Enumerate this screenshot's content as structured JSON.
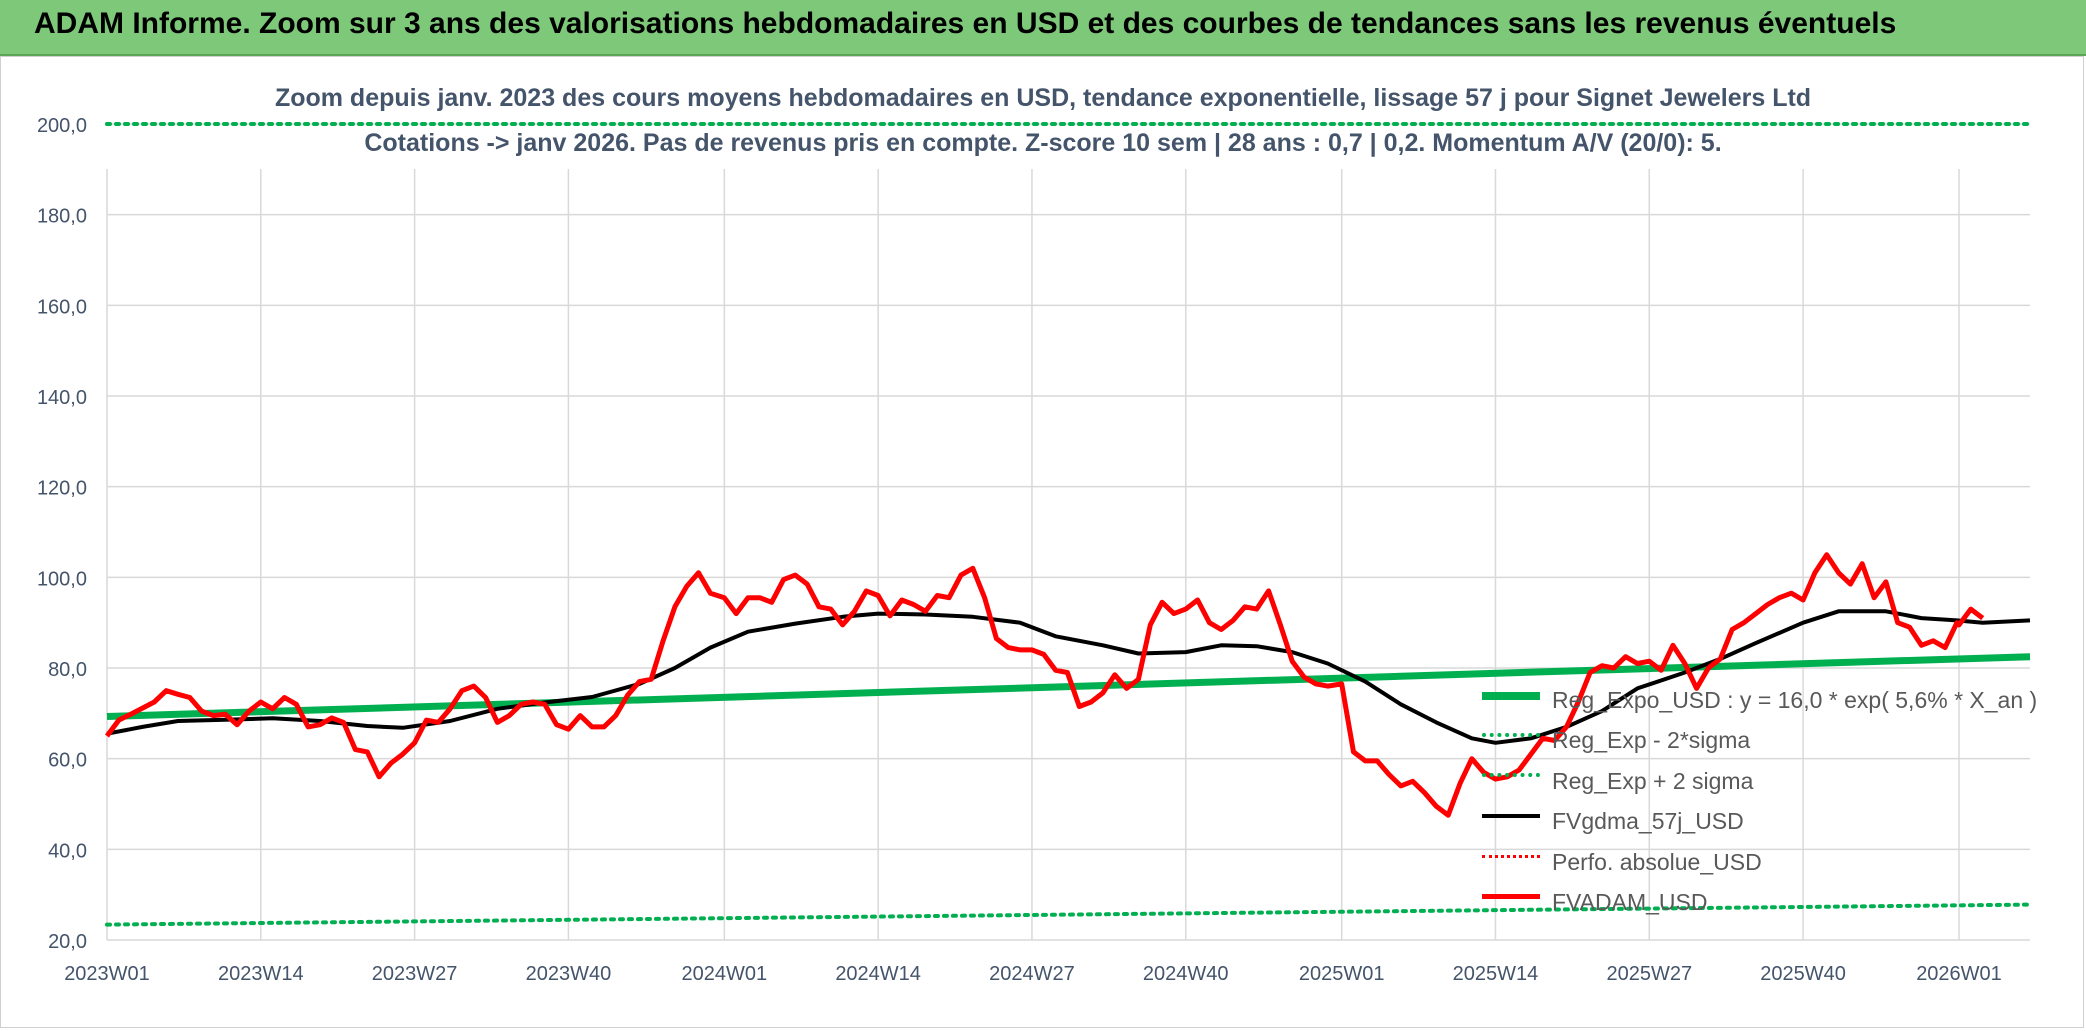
{
  "banner": {
    "title": "ADAM Informe. Zoom sur 3 ans des valorisations hebdomadaires en USD et des courbes de tendances sans les revenus éventuels"
  },
  "colors": {
    "banner": "#7ec87a",
    "reg_expo": "#00b050",
    "fvgdma": "#000000",
    "fvadam": "#ff0000",
    "text": "#44546a",
    "grid": "#d9d9d9"
  },
  "chart_data": {
    "type": "line",
    "title": "Zoom depuis janv. 2023 des cours moyens hebdomadaires en USD, tendance exponentielle, lissage 57 j pour Signet Jewelers Ltd",
    "subtitle": "Cotations -> janv 2026. Pas de revenus pris en compte. Z-score 10 sem | 28 ans : 0,7  | 0,2. Momentum A/V (20/0): 5.",
    "ylim": [
      20,
      200
    ],
    "yticks": [
      "20,0",
      "40,0",
      "60,0",
      "80,0",
      "100,0",
      "120,0",
      "140,0",
      "160,0",
      "180,0",
      "200,0"
    ],
    "x_start_week": "2023W01",
    "x_end_week": "2026W07",
    "x_ticks": [
      "2023W01",
      "2023W14",
      "2023W27",
      "2023W40",
      "2024W01",
      "2024W14",
      "2024W27",
      "2024W40",
      "2025W01",
      "2025W14",
      "2025W27",
      "2025W40",
      "2026W01"
    ],
    "grid": true,
    "legend_position": "right",
    "series": [
      {
        "name": "Reg_Expo_USD : y = 16,0 * exp( 5,6% *  X_an )",
        "style": "solid-thick",
        "color": "#00b050",
        "points": [
          [
            "2023W01",
            69.3
          ],
          [
            "2026W07",
            82.5
          ]
        ]
      },
      {
        "name": "Reg_Exp - 2*sigma",
        "style": "dotted",
        "color": "#00b050",
        "points": [
          [
            "2023W01",
            23.4
          ],
          [
            "2026W07",
            27.8
          ]
        ]
      },
      {
        "name": "Reg_Exp + 2 sigma",
        "style": "dotted",
        "color": "#00b050",
        "points": [
          [
            "2023W01",
            200.0
          ],
          [
            "2026W07",
            200.0
          ]
        ]
      },
      {
        "name": "FVgdma_57j_USD",
        "style": "solid",
        "color": "#000000",
        "points": [
          [
            "2023W01",
            65.5
          ],
          [
            "2023W04",
            67.0
          ],
          [
            "2023W07",
            68.3
          ],
          [
            "2023W11",
            68.6
          ],
          [
            "2023W15",
            68.9
          ],
          [
            "2023W19",
            68.3
          ],
          [
            "2023W23",
            67.2
          ],
          [
            "2023W26",
            66.8
          ],
          [
            "2023W30",
            68.3
          ],
          [
            "2023W34",
            71.0
          ],
          [
            "2023W38",
            72.4
          ],
          [
            "2023W42",
            73.6
          ],
          [
            "2023W46",
            76.5
          ],
          [
            "2023W49",
            80.0
          ],
          [
            "2023W52",
            84.5
          ],
          [
            "2024W03",
            88.0
          ],
          [
            "2024W07",
            89.8
          ],
          [
            "2024W11",
            91.3
          ],
          [
            "2024W14",
            92.0
          ],
          [
            "2024W18",
            91.8
          ],
          [
            "2024W22",
            91.3
          ],
          [
            "2024W26",
            90.0
          ],
          [
            "2024W29",
            87.0
          ],
          [
            "2024W33",
            85.0
          ],
          [
            "2024W36",
            83.2
          ],
          [
            "2024W40",
            83.5
          ],
          [
            "2024W43",
            85.0
          ],
          [
            "2024W46",
            84.8
          ],
          [
            "2024W49",
            83.5
          ],
          [
            "2024W52",
            81.0
          ],
          [
            "2025W03",
            77.0
          ],
          [
            "2025W06",
            72.0
          ],
          [
            "2025W09",
            68.0
          ],
          [
            "2025W12",
            64.5
          ],
          [
            "2025W14",
            63.5
          ],
          [
            "2025W17",
            64.5
          ],
          [
            "2025W20",
            67.0
          ],
          [
            "2025W23",
            70.5
          ],
          [
            "2025W26",
            75.5
          ],
          [
            "2025W30",
            79.0
          ],
          [
            "2025W33",
            82.0
          ],
          [
            "2025W36",
            85.5
          ],
          [
            "2025W40",
            90.0
          ],
          [
            "2025W43",
            92.5
          ],
          [
            "2025W47",
            92.5
          ],
          [
            "2025W50",
            91.0
          ],
          [
            "2025W53",
            90.5
          ],
          [
            "2026W03",
            90.0
          ],
          [
            "2026W07",
            90.5
          ]
        ]
      },
      {
        "name": "Perfo. absolue_USD",
        "style": "dotted",
        "color": "#ff0000",
        "points": []
      },
      {
        "name": "FVADAM_USD",
        "style": "solid-thick",
        "color": "#ff0000",
        "points": [
          [
            "2023W01",
            65.0
          ],
          [
            "2023W02",
            68.5
          ],
          [
            "2023W03",
            69.8
          ],
          [
            "2023W05",
            72.5
          ],
          [
            "2023W06",
            75.0
          ],
          [
            "2023W07",
            74.2
          ],
          [
            "2023W08",
            73.5
          ],
          [
            "2023W09",
            70.5
          ],
          [
            "2023W10",
            69.5
          ],
          [
            "2023W11",
            69.8
          ],
          [
            "2023W12",
            67.5
          ],
          [
            "2023W13",
            70.5
          ],
          [
            "2023W14",
            72.5
          ],
          [
            "2023W15",
            71.0
          ],
          [
            "2023W16",
            73.5
          ],
          [
            "2023W17",
            72.0
          ],
          [
            "2023W18",
            67.0
          ],
          [
            "2023W19",
            67.5
          ],
          [
            "2023W20",
            69.0
          ],
          [
            "2023W21",
            68.0
          ],
          [
            "2023W22",
            62.0
          ],
          [
            "2023W23",
            61.5
          ],
          [
            "2023W24",
            56.0
          ],
          [
            "2023W25",
            59.0
          ],
          [
            "2023W26",
            61.0
          ],
          [
            "2023W27",
            63.5
          ],
          [
            "2023W28",
            68.5
          ],
          [
            "2023W29",
            68.0
          ],
          [
            "2023W30",
            71.0
          ],
          [
            "2023W31",
            75.0
          ],
          [
            "2023W32",
            76.0
          ],
          [
            "2023W33",
            73.5
          ],
          [
            "2023W34",
            68.0
          ],
          [
            "2023W35",
            69.5
          ],
          [
            "2023W36",
            72.0
          ],
          [
            "2023W37",
            72.5
          ],
          [
            "2023W38",
            72.0
          ],
          [
            "2023W39",
            67.5
          ],
          [
            "2023W40",
            66.5
          ],
          [
            "2023W41",
            69.5
          ],
          [
            "2023W42",
            67.0
          ],
          [
            "2023W43",
            67.0
          ],
          [
            "2023W44",
            69.5
          ],
          [
            "2023W45",
            74.0
          ],
          [
            "2023W46",
            77.0
          ],
          [
            "2023W47",
            77.5
          ],
          [
            "2023W48",
            86.0
          ],
          [
            "2023W49",
            93.5
          ],
          [
            "2023W50",
            98.0
          ],
          [
            "2023W51",
            101.0
          ],
          [
            "2023W52",
            96.5
          ],
          [
            "2024W01",
            95.5
          ],
          [
            "2024W02",
            92.0
          ],
          [
            "2024W03",
            95.5
          ],
          [
            "2024W04",
            95.5
          ],
          [
            "2024W05",
            94.5
          ],
          [
            "2024W06",
            99.5
          ],
          [
            "2024W07",
            100.5
          ],
          [
            "2024W08",
            98.5
          ],
          [
            "2024W09",
            93.5
          ],
          [
            "2024W10",
            93.0
          ],
          [
            "2024W11",
            89.5
          ],
          [
            "2024W12",
            92.5
          ],
          [
            "2024W13",
            97.0
          ],
          [
            "2024W14",
            96.0
          ],
          [
            "2024W15",
            91.5
          ],
          [
            "2024W16",
            95.0
          ],
          [
            "2024W17",
            94.0
          ],
          [
            "2024W18",
            92.5
          ],
          [
            "2024W19",
            96.0
          ],
          [
            "2024W20",
            95.5
          ],
          [
            "2024W21",
            100.5
          ],
          [
            "2024W22",
            102.0
          ],
          [
            "2024W23",
            95.5
          ],
          [
            "2024W24",
            86.5
          ],
          [
            "2024W25",
            84.5
          ],
          [
            "2024W26",
            84.0
          ],
          [
            "2024W27",
            84.0
          ],
          [
            "2024W28",
            83.0
          ],
          [
            "2024W29",
            79.5
          ],
          [
            "2024W30",
            79.0
          ],
          [
            "2024W31",
            71.5
          ],
          [
            "2024W32",
            72.5
          ],
          [
            "2024W33",
            74.5
          ],
          [
            "2024W34",
            78.5
          ],
          [
            "2024W35",
            75.5
          ],
          [
            "2024W36",
            77.5
          ],
          [
            "2024W37",
            89.5
          ],
          [
            "2024W38",
            94.5
          ],
          [
            "2024W39",
            92.0
          ],
          [
            "2024W40",
            93.0
          ],
          [
            "2024W41",
            95.0
          ],
          [
            "2024W42",
            90.0
          ],
          [
            "2024W43",
            88.5
          ],
          [
            "2024W44",
            90.5
          ],
          [
            "2024W45",
            93.5
          ],
          [
            "2024W46",
            93.0
          ],
          [
            "2024W47",
            97.0
          ],
          [
            "2024W48",
            89.5
          ],
          [
            "2024W49",
            81.5
          ],
          [
            "2024W50",
            78.0
          ],
          [
            "2024W51",
            76.5
          ],
          [
            "2024W52",
            76.0
          ],
          [
            "2025W01",
            76.5
          ],
          [
            "2025W02",
            61.5
          ],
          [
            "2025W03",
            59.5
          ],
          [
            "2025W04",
            59.5
          ],
          [
            "2025W05",
            56.5
          ],
          [
            "2025W06",
            54.0
          ],
          [
            "2025W07",
            55.0
          ],
          [
            "2025W08",
            52.5
          ],
          [
            "2025W09",
            49.5
          ],
          [
            "2025W10",
            47.5
          ],
          [
            "2025W11",
            54.5
          ],
          [
            "2025W12",
            60.0
          ],
          [
            "2025W13",
            57.0
          ],
          [
            "2025W14",
            55.5
          ],
          [
            "2025W15",
            56.0
          ],
          [
            "2025W16",
            57.5
          ],
          [
            "2025W17",
            61.0
          ],
          [
            "2025W18",
            64.5
          ],
          [
            "2025W19",
            64.0
          ],
          [
            "2025W20",
            67.0
          ],
          [
            "2025W21",
            72.5
          ],
          [
            "2025W22",
            79.0
          ],
          [
            "2025W23",
            80.5
          ],
          [
            "2025W24",
            80.0
          ],
          [
            "2025W25",
            82.5
          ],
          [
            "2025W26",
            81.0
          ],
          [
            "2025W27",
            81.5
          ],
          [
            "2025W28",
            79.5
          ],
          [
            "2025W29",
            85.0
          ],
          [
            "2025W30",
            81.0
          ],
          [
            "2025W31",
            75.5
          ],
          [
            "2025W32",
            80.0
          ],
          [
            "2025W33",
            82.0
          ],
          [
            "2025W34",
            88.5
          ],
          [
            "2025W35",
            90.0
          ],
          [
            "2025W36",
            92.0
          ],
          [
            "2025W37",
            94.0
          ],
          [
            "2025W38",
            95.5
          ],
          [
            "2025W39",
            96.5
          ],
          [
            "2025W40",
            95.0
          ],
          [
            "2025W41",
            101.0
          ],
          [
            "2025W42",
            105.0
          ],
          [
            "2025W43",
            101.0
          ],
          [
            "2025W44",
            98.5
          ],
          [
            "2025W45",
            103.0
          ],
          [
            "2025W46",
            95.5
          ],
          [
            "2025W47",
            99.0
          ],
          [
            "2025W48",
            90.0
          ],
          [
            "2025W49",
            89.0
          ],
          [
            "2025W50",
            85.0
          ],
          [
            "2025W51",
            86.0
          ],
          [
            "2025W52",
            84.5
          ],
          [
            "2025W53",
            90.0
          ],
          [
            "2026W01",
            89.5
          ],
          [
            "2026W02",
            93.0
          ],
          [
            "2026W03",
            91.0
          ]
        ]
      }
    ]
  }
}
